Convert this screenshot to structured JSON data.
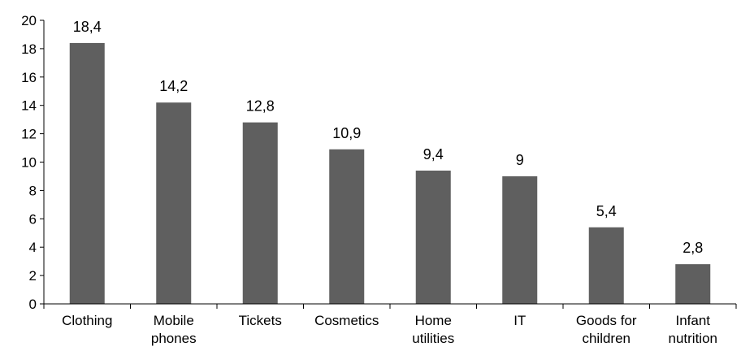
{
  "chart_data": {
    "type": "bar",
    "categories": [
      [
        "Clothing"
      ],
      [
        "Mobile",
        "phones"
      ],
      [
        "Tickets"
      ],
      [
        "Cosmetics"
      ],
      [
        "Home",
        "utilities"
      ],
      [
        "IT"
      ],
      [
        "Goods for",
        "children"
      ],
      [
        "Infant",
        "nutrition"
      ]
    ],
    "values": [
      18.4,
      14.2,
      12.8,
      10.9,
      9.4,
      9,
      5.4,
      2.8
    ],
    "data_labels": [
      "18,4",
      "14,2",
      "12,8",
      "10,9",
      "9,4",
      "9",
      "5,4",
      "2,8"
    ],
    "y_ticks": [
      "0",
      "2",
      "4",
      "6",
      "8",
      "10",
      "12",
      "14",
      "16",
      "18",
      "20"
    ],
    "ylim": [
      0,
      20
    ],
    "grid": false,
    "legend": "none",
    "bar_color": "#5f5f5f",
    "axis_color": "#000000"
  }
}
